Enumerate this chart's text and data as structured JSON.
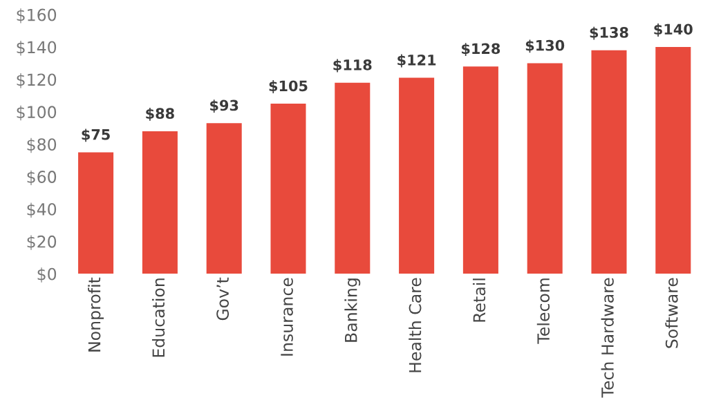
{
  "chart_data": {
    "type": "bar",
    "categories": [
      "Nonprofit",
      "Education",
      "Gov’t",
      "Insurance",
      "Banking",
      "Health Care",
      "Retail",
      "Telecom",
      "Tech Hardware",
      "Software"
    ],
    "values": [
      75,
      88,
      93,
      105,
      118,
      121,
      128,
      130,
      138,
      140
    ],
    "value_labels": [
      "$75",
      "$88",
      "$93",
      "$105",
      "$118",
      "$121",
      "$128",
      "$130",
      "$138",
      "$140"
    ],
    "color": "#e84a3c",
    "ylim": [
      0,
      160
    ],
    "yticks": [
      {
        "value": 0,
        "label": "$0"
      },
      {
        "value": 20,
        "label": "$20"
      },
      {
        "value": 40,
        "label": "$40"
      },
      {
        "value": 60,
        "label": "$60"
      },
      {
        "value": 80,
        "label": "$80"
      },
      {
        "value": 100,
        "label": "$100"
      },
      {
        "value": 120,
        "label": "$120"
      },
      {
        "value": 140,
        "label": "$140"
      },
      {
        "value": 160,
        "label": "$160"
      }
    ],
    "grid": false,
    "legend": false
  }
}
